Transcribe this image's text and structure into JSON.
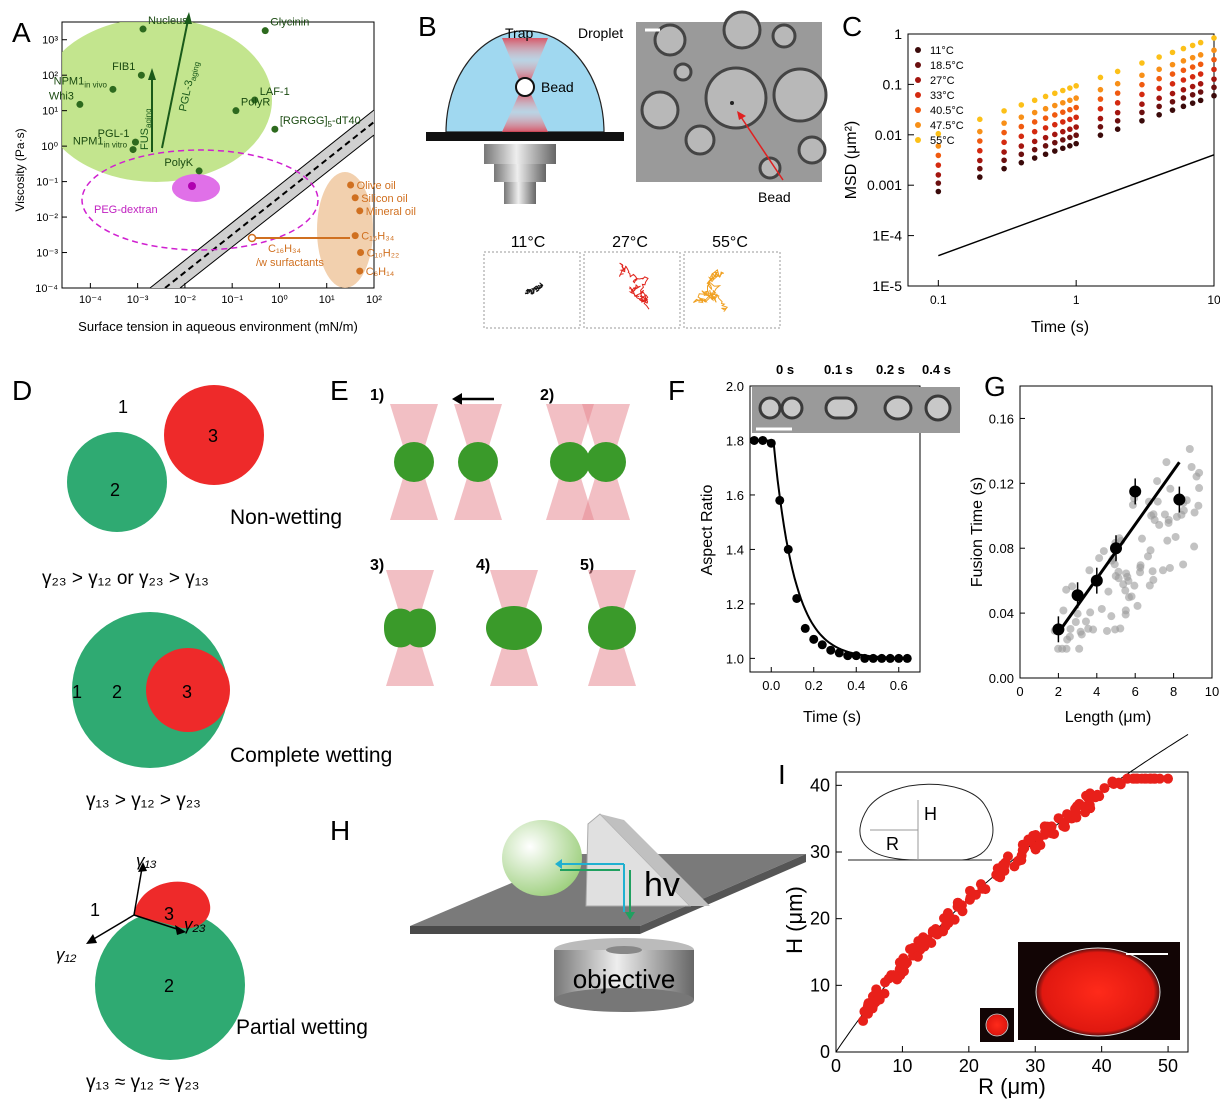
{
  "panels": {
    "A": "A",
    "B": "B",
    "C": "C",
    "D": "D",
    "E": "E",
    "F": "F",
    "G": "G",
    "H": "H",
    "I": "I"
  },
  "panelA": {
    "xlabel": "Surface tension in aqueous environment (mN/m)",
    "ylabel": "Viscosity (Pa·s)",
    "xticks": [
      "10⁻⁴",
      "10⁻³",
      "10⁻²",
      "10⁻¹",
      "10⁰",
      "10¹",
      "10²"
    ],
    "yticks": [
      "10³",
      "10²",
      "10¹",
      "10⁰",
      "10⁻¹",
      "10⁻²",
      "10⁻³",
      "10⁻⁴"
    ],
    "condensates": [
      {
        "label": "Nucleus",
        "x": 0.0013,
        "y": 2000
      },
      {
        "label": "Glycinin",
        "x": 0.5,
        "y": 1800
      },
      {
        "label": "FIB1",
        "x": 0.0012,
        "y": 100
      },
      {
        "label": "NPM1",
        "sub": "in vivo",
        "x": 0.0003,
        "y": 40
      },
      {
        "label": "Whi3",
        "x": 6e-05,
        "y": 15
      },
      {
        "label": "LAF-1",
        "x": 0.3,
        "y": 20
      },
      {
        "label": "PolyR",
        "x": 0.12,
        "y": 10
      },
      {
        "label": "[RGRGG]",
        "sub": "5",
        "tail": "-dT40",
        "x": 0.8,
        "y": 3
      },
      {
        "label": "PGL-1",
        "x": 0.0009,
        "y": 1.3
      },
      {
        "label": "NPM1",
        "sub": "in vitro",
        "x": 0.0008,
        "y": 0.8
      },
      {
        "label": "PolyK",
        "x": 0.02,
        "y": 0.2
      }
    ],
    "aging_labels": [
      {
        "label": "FUS",
        "sub": "aging"
      },
      {
        "label": "PGL-3",
        "sub": "aging"
      }
    ],
    "peg_label": "PEG-dextran",
    "oils": [
      {
        "label": "Olive oil",
        "x": 32,
        "y": 0.08
      },
      {
        "label": "Silicon oil",
        "x": 40,
        "y": 0.035
      },
      {
        "label": "Mineral oil",
        "x": 50,
        "y": 0.015
      },
      {
        "label": "C₁₆H₃₄",
        "x": 40,
        "y": 0.003
      },
      {
        "label": "C₁₀H₂₂",
        "x": 52,
        "y": 0.001
      },
      {
        "label": "C₆H₁₄",
        "x": 50,
        "y": 0.0003
      }
    ],
    "surfactant_label": "C₁₆H₃₄",
    "surfactant_label2": "/w surfactants"
  },
  "panelB": {
    "trap": "Trap",
    "bead": "Bead",
    "droplet": "Droplet",
    "bead_arrow": "Bead",
    "traj_labels": [
      "11°C",
      "27°C",
      "55°C"
    ],
    "colors": {
      "t11": "#111111",
      "t27": "#e0241c",
      "t55": "#f0a020"
    }
  },
  "panelC": {
    "xlabel": "Time (s)",
    "ylabel": "MSD (μm²)",
    "xticks": [
      "0.1",
      "1",
      "10"
    ],
    "yticks": [
      "1",
      "0.1",
      "0.01",
      "0.001",
      "1E-4",
      "1E-5"
    ],
    "legend": [
      {
        "label": "11°C",
        "color": "#3a0a0a"
      },
      {
        "label": "18.5°C",
        "color": "#6b0f0f"
      },
      {
        "label": "27°C",
        "color": "#a3150f"
      },
      {
        "label": "33°C",
        "color": "#d42a10"
      },
      {
        "label": "40.5°C",
        "color": "#f05a10"
      },
      {
        "label": "47.5°C",
        "color": "#f89018"
      },
      {
        "label": "55°C",
        "color": "#fcc018"
      }
    ]
  },
  "panelD": {
    "non_wetting": "Non-wetting",
    "complete_wetting": "Complete wetting",
    "partial_wetting": "Partial wetting",
    "eq1": "γ₂₃ > γ₁₂ or γ₂₃ > γ₁₃",
    "eq2": "γ₁₃ > γ₁₂ > γ₂₃",
    "eq3": "γ₁₃ ≈ γ₁₂ ≈ γ₂₃",
    "n1": "1",
    "n2": "2",
    "n3": "3",
    "g13": "γ₁₃",
    "g12": "γ₁₂",
    "g23": "γ₂₃"
  },
  "panelE": {
    "steps": [
      "1)",
      "2)",
      "3)",
      "4)",
      "5)"
    ]
  },
  "panelF": {
    "xlabel": "Time (s)",
    "ylabel": "Aspect Ratio",
    "times": [
      "0 s",
      "0.1 s",
      "0.2 s",
      "0.4 s"
    ],
    "xticks": [
      "0.0",
      "0.2",
      "0.4",
      "0.6"
    ],
    "yticks": [
      "1.0",
      "1.2",
      "1.4",
      "1.6",
      "1.8",
      "2.0"
    ]
  },
  "panelG": {
    "xlabel": "Length (μm)",
    "ylabel": "Fusion Time (s)",
    "xticks": [
      "0",
      "2",
      "4",
      "6",
      "8",
      "10"
    ],
    "yticks": [
      "0.00",
      "0.04",
      "0.08",
      "0.12",
      "0.16"
    ]
  },
  "panelH": {
    "hv": "hv",
    "objective": "objective"
  },
  "panelI": {
    "xlabel": "R (μm)",
    "ylabel": "H (μm)",
    "xticks": [
      "0",
      "10",
      "20",
      "30",
      "40",
      "50"
    ],
    "yticks": [
      "0",
      "10",
      "20",
      "30",
      "40"
    ],
    "inset_H": "H",
    "inset_R": "R"
  },
  "chart_data": [
    {
      "type": "scatter",
      "panel": "C",
      "xlabel": "Time (s)",
      "ylabel": "MSD (μm²)",
      "xscale": "log",
      "yscale": "log",
      "xlim": [
        0.06,
        10
      ],
      "ylim": [
        1e-05,
        1
      ],
      "x": [
        0.1,
        0.2,
        0.3,
        0.4,
        0.5,
        0.6,
        0.7,
        0.8,
        0.9,
        1,
        1.5,
        2,
        3,
        4,
        5,
        6,
        7,
        8,
        10
      ],
      "series": [
        {
          "name": "11°C",
          "a": 0.00075
        },
        {
          "name": "18.5°C",
          "a": 0.0011
        },
        {
          "name": "27°C",
          "a": 0.0016
        },
        {
          "name": "33°C",
          "a": 0.0025
        },
        {
          "name": "40.5°C",
          "a": 0.0039
        },
        {
          "name": "47.5°C",
          "a": 0.006
        },
        {
          "name": "55°C",
          "a": 0.0105
        }
      ]
    },
    {
      "type": "scatter",
      "panel": "F",
      "xlabel": "Time (s)",
      "ylabel": "Aspect Ratio",
      "xlim": [
        -0.1,
        0.7
      ],
      "ylim": [
        0.95,
        2.0
      ],
      "points": [
        [
          -0.08,
          1.8
        ],
        [
          -0.04,
          1.8
        ],
        [
          0.0,
          1.79
        ],
        [
          0.04,
          1.58
        ],
        [
          0.08,
          1.4
        ],
        [
          0.12,
          1.22
        ],
        [
          0.16,
          1.11
        ],
        [
          0.2,
          1.07
        ],
        [
          0.24,
          1.05
        ],
        [
          0.28,
          1.03
        ],
        [
          0.32,
          1.02
        ],
        [
          0.36,
          1.01
        ],
        [
          0.4,
          1.01
        ],
        [
          0.44,
          1.0
        ],
        [
          0.48,
          1.0
        ],
        [
          0.52,
          1.0
        ],
        [
          0.56,
          1.0
        ],
        [
          0.6,
          1.0
        ],
        [
          0.64,
          1.0
        ]
      ]
    },
    {
      "type": "scatter",
      "panel": "G",
      "xlabel": "Length (μm)",
      "ylabel": "Fusion Time (s)",
      "xlim": [
        0,
        10
      ],
      "ylim": [
        0,
        0.18
      ],
      "binned": [
        [
          2,
          0.03
        ],
        [
          3,
          0.051
        ],
        [
          4,
          0.06
        ],
        [
          5,
          0.08
        ],
        [
          6,
          0.115
        ],
        [
          8.3,
          0.11
        ]
      ],
      "fit": [
        [
          2,
          0.028
        ],
        [
          8.3,
          0.133
        ]
      ]
    },
    {
      "type": "scatter",
      "panel": "I",
      "xlabel": "R (μm)",
      "ylabel": "H (μm)",
      "xlim": [
        0,
        53
      ],
      "ylim": [
        0,
        42
      ],
      "xmax_points": 50
    }
  ]
}
